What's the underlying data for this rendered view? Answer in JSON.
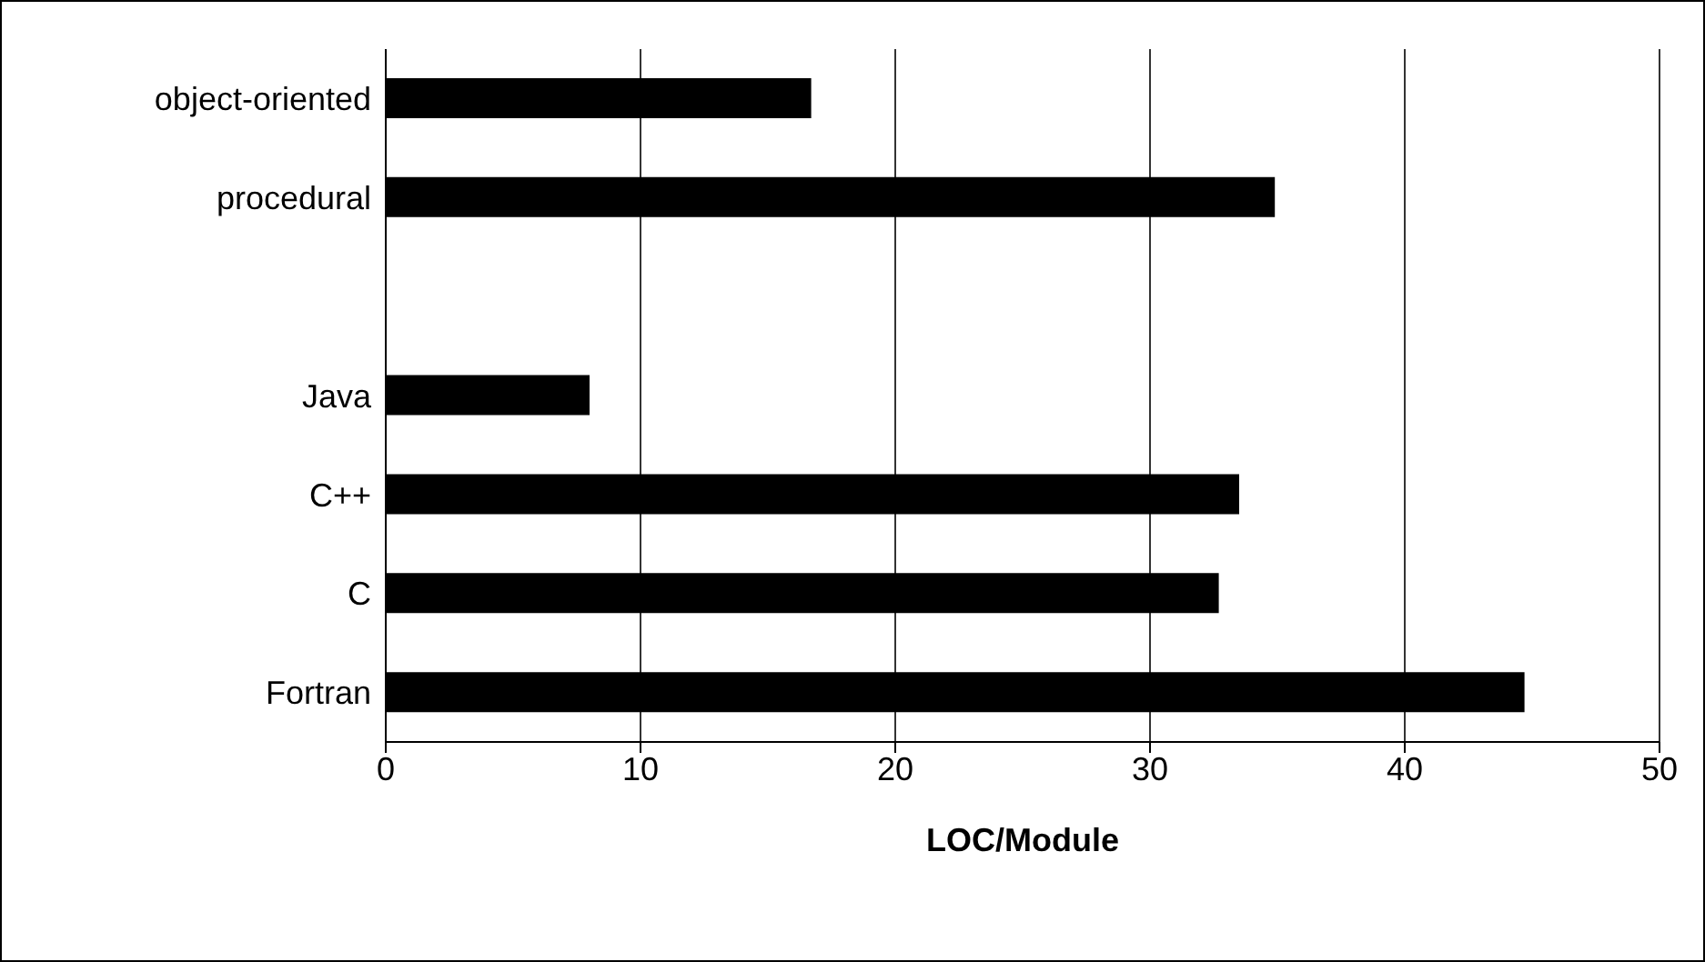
{
  "chart_data": {
    "type": "bar",
    "orientation": "horizontal",
    "xlabel": "LOC/Module",
    "categories": [
      "object-oriented",
      "procedural",
      null,
      "Java",
      "C++",
      "C",
      "Fortran"
    ],
    "values": [
      16.7,
      34.9,
      null,
      8.0,
      33.5,
      32.7,
      44.7
    ],
    "color": "#000000",
    "xlim": [
      0,
      50
    ],
    "xticks": [
      0,
      10,
      20,
      30,
      40,
      50
    ],
    "grid": "x",
    "legend": false
  }
}
